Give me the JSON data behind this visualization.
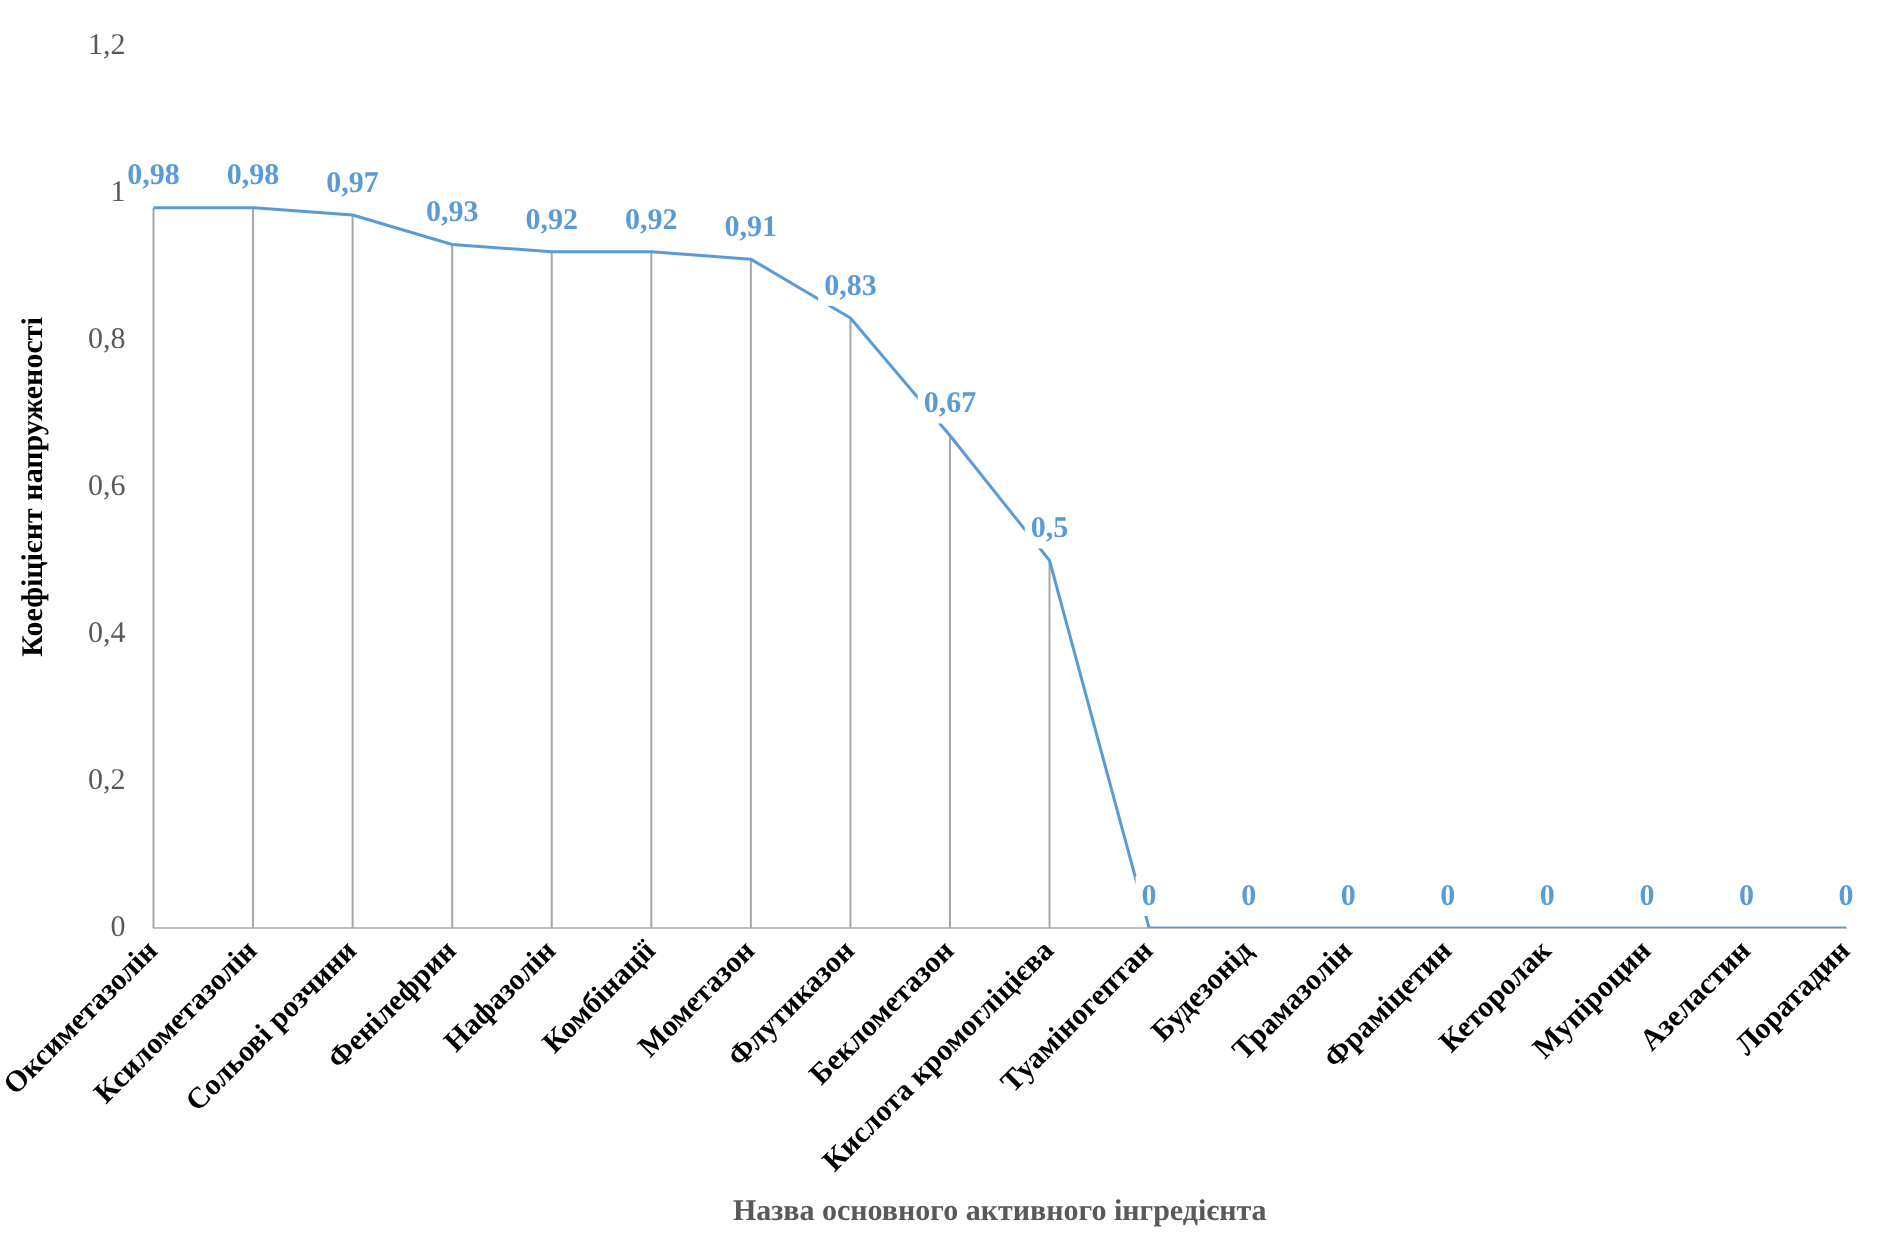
{
  "chart_data": {
    "type": "line",
    "xlabel": "Назва основного активного інгредієнта",
    "ylabel": "Коефіцієнт напруженості",
    "categories": [
      "Оксиметазолін",
      "Ксилометазолін",
      "Сольові розчини",
      "Фенілефрин",
      "Нафазолін",
      "Комбінації",
      "Мометазон",
      "Флутиказон",
      "Беклометазон",
      "Кислота кромогліцієва",
      "Туаміногептан",
      "Будезонід",
      "Трамазолін",
      "Фраміцетин",
      "Кеторолак",
      "Мупіроцин",
      "Азеластин",
      "Лоратадин"
    ],
    "series": [
      {
        "color": "#5b9bd5",
        "values": [
          0.98,
          0.98,
          0.97,
          0.93,
          0.92,
          0.92,
          0.91,
          0.83,
          0.67,
          0.5,
          0,
          0,
          0,
          0,
          0,
          0,
          0,
          0
        ],
        "value_labels": [
          "0,98",
          "0,98",
          "0,97",
          "0,93",
          "0,92",
          "0,92",
          "0,91",
          "0,83",
          "0,67",
          "0,5",
          "0",
          "0",
          "0",
          "0",
          "0",
          "0",
          "0",
          "0"
        ]
      }
    ],
    "ylim": [
      0,
      1.2
    ],
    "yticks": [
      0,
      {
        "value": 0.2,
        "label": "0,2"
      },
      {
        "value": 0.4,
        "label": "0,4"
      },
      {
        "value": 0.6,
        "label": "0,6"
      },
      {
        "value": 0.8,
        "label": "0,8"
      },
      1,
      {
        "value": 1.2,
        "label": "1,2"
      }
    ],
    "grid": "x",
    "legend": false,
    "marker": "none",
    "line_style": "solid"
  }
}
